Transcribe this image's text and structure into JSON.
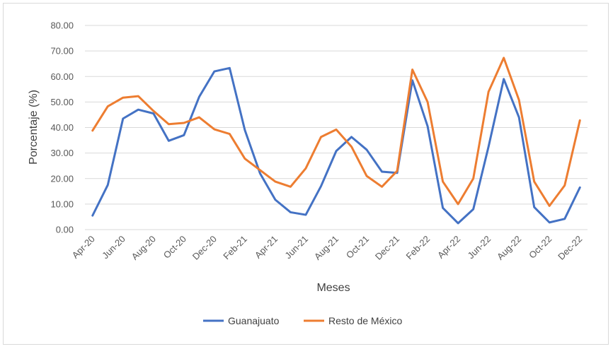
{
  "chart_data": {
    "type": "line",
    "title": "",
    "xlabel": "Meses",
    "ylabel": "Porcentaje (%)",
    "ylim": [
      0,
      80
    ],
    "yticks": [
      "0.00",
      "10.00",
      "20.00",
      "30.00",
      "40.00",
      "50.00",
      "60.00",
      "70.00",
      "80.00"
    ],
    "x": [
      "Apr-20",
      "May-20",
      "Jun-20",
      "Jul-20",
      "Aug-20",
      "Sep-20",
      "Oct-20",
      "Nov-20",
      "Dec-20",
      "Jan-21",
      "Feb-21",
      "Mar-21",
      "Apr-21",
      "May-21",
      "Jun-21",
      "Jul-21",
      "Aug-21",
      "Sep-21",
      "Oct-21",
      "Nov-21",
      "Dec-21",
      "Jan-22",
      "Feb-22",
      "Mar-22",
      "Apr-22",
      "May-22",
      "Jun-22",
      "Jul-22",
      "Aug-22",
      "Sep-22",
      "Oct-22",
      "Nov-22",
      "Dec-22"
    ],
    "xtick_labels": [
      "Apr-20",
      "Jun-20",
      "Aug-20",
      "Oct-20",
      "Dec-20",
      "Feb-21",
      "Apr-21",
      "Jun-21",
      "Aug-21",
      "Oct-21",
      "Dec-21",
      "Feb-22",
      "Apr-22",
      "Jun-22",
      "Aug-22",
      "Oct-22",
      "Dec-22"
    ],
    "grid": true,
    "legend_position": "bottom",
    "series": [
      {
        "name": "Guanajuato",
        "color": "#4472c4",
        "values": [
          5.5,
          17.5,
          43.5,
          47.0,
          45.5,
          34.8,
          37.0,
          52.0,
          62.0,
          63.3,
          39.0,
          22.0,
          11.7,
          6.8,
          5.8,
          17.0,
          30.8,
          36.3,
          31.3,
          22.7,
          22.2,
          58.5,
          40.5,
          8.5,
          2.5,
          8.0,
          32.5,
          59.0,
          44.0,
          8.8,
          2.8,
          4.2,
          16.5
        ]
      },
      {
        "name": "Resto de México",
        "color": "#ed7d31",
        "values": [
          38.8,
          48.3,
          51.7,
          52.3,
          46.5,
          41.3,
          41.8,
          44.0,
          39.3,
          37.5,
          27.8,
          23.3,
          18.8,
          16.8,
          24.0,
          36.3,
          39.2,
          32.5,
          21.0,
          16.8,
          23.0,
          62.7,
          50.0,
          18.8,
          10.0,
          20.0,
          54.0,
          67.3,
          50.8,
          18.8,
          9.3,
          17.3,
          42.8
        ]
      }
    ]
  }
}
